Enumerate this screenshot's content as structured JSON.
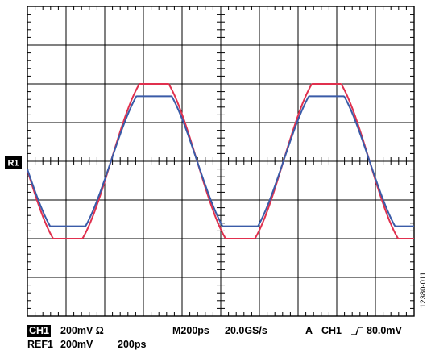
{
  "chart_data": {
    "type": "line",
    "title": "",
    "xlabel": "",
    "ylabel": "",
    "grid": true,
    "x_divisions": 10,
    "y_divisions": 8,
    "xlim": [
      0,
      10
    ],
    "ylim": [
      -4,
      4
    ],
    "x_unit_per_div": "200ps",
    "y_unit_per_div": "200mV",
    "reference_marker": "R1",
    "series": [
      {
        "name": "REF1",
        "color": "#e0304e",
        "waveform": "clipped-sine",
        "period_div": 4.46,
        "phase_div": -0.07,
        "amplitude_div": 2.32,
        "clip_div": 2.0,
        "offset_div": 0
      },
      {
        "name": "CH1",
        "color": "#3a5ba8",
        "waveform": "clipped-sine",
        "period_div": 4.46,
        "phase_div": -0.07,
        "amplitude_div": 2.1,
        "clip_div": 1.68,
        "offset_div": 0
      }
    ]
  },
  "readout": {
    "ch1_badge": "CH1",
    "ch1_scale": "200mV Ω",
    "timebase": "M200ps",
    "sample_rate": "20.0GS/s",
    "trigger_mode": "A",
    "trigger_source": "CH1",
    "trigger_level": "80.0mV",
    "ref1_label": "REF1",
    "ref1_scale": "200mV",
    "ref1_time": "200ps"
  },
  "figure_id": "12380-011"
}
